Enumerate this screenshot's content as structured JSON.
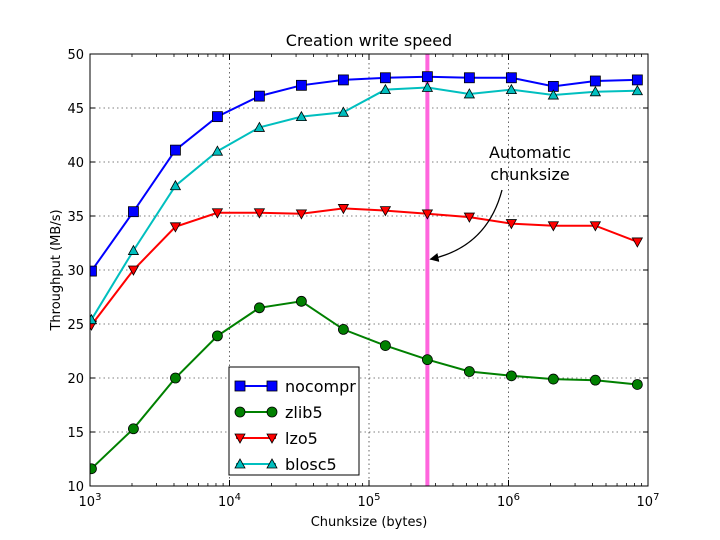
{
  "chart_data": {
    "type": "line",
    "title": "Creation write speed",
    "xlabel": "Chunksize (bytes)",
    "ylabel": "Throughput (MB/s)",
    "xscale": "log",
    "xlim": [
      1000,
      10000000
    ],
    "ylim": [
      10,
      50
    ],
    "x_ticks": [
      {
        "value": 1000,
        "base": "10",
        "exp": "3"
      },
      {
        "value": 10000,
        "base": "10",
        "exp": "4"
      },
      {
        "value": 100000,
        "base": "10",
        "exp": "5"
      },
      {
        "value": 1000000,
        "base": "10",
        "exp": "6"
      },
      {
        "value": 10000000,
        "base": "10",
        "exp": "7"
      }
    ],
    "y_ticks": [
      10,
      15,
      20,
      25,
      30,
      35,
      40,
      45,
      50
    ],
    "grid": true,
    "x": [
      1024,
      2048,
      4096,
      8192,
      16384,
      32768,
      65536,
      131072,
      262144,
      524288,
      1048576,
      2097152,
      4194304,
      8388608
    ],
    "series": [
      {
        "name": "nocompr",
        "color": "#0000ff",
        "marker": "square",
        "values": [
          29.9,
          35.4,
          41.1,
          44.2,
          46.1,
          47.1,
          47.6,
          47.8,
          47.9,
          47.8,
          47.8,
          47.0,
          47.5,
          47.6
        ]
      },
      {
        "name": "zlib5",
        "color": "#008000",
        "marker": "circle",
        "values": [
          11.6,
          15.3,
          20.0,
          23.9,
          26.5,
          27.1,
          24.5,
          23.0,
          21.7,
          20.6,
          20.2,
          19.9,
          19.8,
          19.4
        ]
      },
      {
        "name": "lzo5",
        "color": "#ff0000",
        "marker": "triangle-down",
        "values": [
          24.9,
          30.0,
          34.0,
          35.3,
          35.3,
          35.2,
          35.7,
          35.5,
          35.2,
          34.9,
          34.3,
          34.1,
          34.1,
          32.6
        ]
      },
      {
        "name": "blosc5",
        "color": "#00bfbf",
        "marker": "triangle-up",
        "values": [
          25.4,
          31.8,
          37.8,
          41.0,
          43.2,
          44.2,
          44.6,
          46.7,
          46.9,
          46.3,
          46.7,
          46.2,
          46.5,
          46.6
        ]
      }
    ],
    "vline": {
      "x": 262144,
      "color": "#ff66dd"
    },
    "annotation": {
      "lines": [
        "Automatic",
        "chunksize"
      ],
      "arrow_to": {
        "x": 262144,
        "y": 31.0
      }
    },
    "legend_placement": "lower-center-left"
  }
}
